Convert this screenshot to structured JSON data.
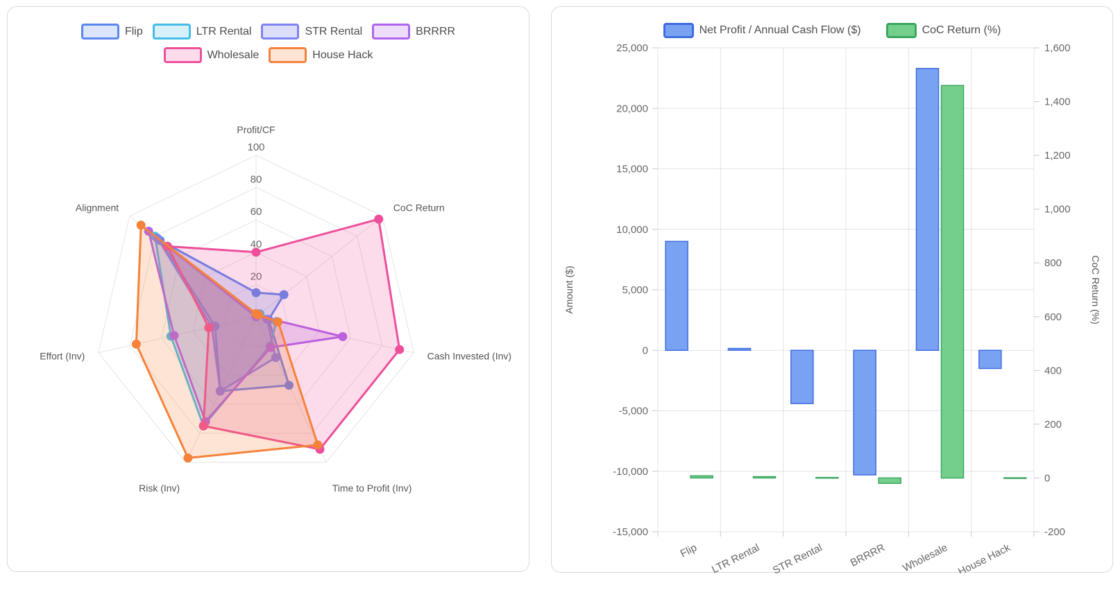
{
  "chart_data": [
    {
      "type": "radar",
      "title": "",
      "axes": [
        "Profit/CF",
        "CoC Return",
        "Cash Invested (Inv)",
        "Time to Profit (Inv)",
        "Risk (Inv)",
        "Effort (Inv)",
        "Alignment"
      ],
      "scale": {
        "min": 0,
        "max": 100,
        "tick_values": [
          20,
          40,
          60,
          80,
          100
        ],
        "tick_labels": [
          "20",
          "40",
          "60",
          "80",
          "100"
        ]
      },
      "grid": "on",
      "legend_position": "top",
      "series": [
        {
          "name": "Flip",
          "border": "#5b87ee",
          "fill": "rgba(91,135,238,0.22)",
          "values": [
            15,
            22,
            8,
            47,
            51,
            26,
            76
          ]
        },
        {
          "name": "LTR Rental",
          "border": "#45bde8",
          "fill": "rgba(69,189,232,0.22)",
          "values": [
            1,
            3,
            13,
            20,
            75,
            54,
            80
          ]
        },
        {
          "name": "STR Rental",
          "border": "#7e84f2",
          "fill": "rgba(126,132,242,0.28)",
          "values": [
            0,
            1,
            7,
            28,
            51,
            28,
            78
          ]
        },
        {
          "name": "BRRRR",
          "border": "#ae64ef",
          "fill": "rgba(174,100,239,0.22)",
          "values": [
            1,
            1,
            55,
            21,
            72,
            52,
            85
          ]
        },
        {
          "name": "Wholesale",
          "border": "#ee4f9b",
          "fill": "rgba(238,79,155,0.20)",
          "values": [
            40,
            97,
            91,
            91,
            75,
            30,
            70
          ]
        },
        {
          "name": "House Hack",
          "border": "#f5823a",
          "fill": "rgba(245,130,58,0.22)",
          "values": [
            2,
            2,
            14,
            88,
            97,
            76,
            91
          ]
        }
      ]
    },
    {
      "type": "bar",
      "title": "",
      "categories": [
        "Flip",
        "LTR Rental",
        "STR Rental",
        "BRRRR",
        "Wholesale",
        "House Hack"
      ],
      "grid": "on",
      "legend_position": "top",
      "left_axis": {
        "title": "Amount ($)",
        "min": -15000,
        "max": 25000,
        "step": 5000,
        "tick_values": [
          25000,
          20000,
          15000,
          10000,
          5000,
          0,
          -5000,
          -10000,
          -15000
        ],
        "tick_labels": [
          "25,000",
          "20,000",
          "15,000",
          "10,000",
          "5,000",
          "0",
          "-5,000",
          "-10,000",
          "-15,000"
        ]
      },
      "right_axis": {
        "title": "CoC Return (%)",
        "min": -200,
        "max": 1600,
        "step": 200,
        "tick_values": [
          1600,
          1400,
          1200,
          1000,
          800,
          600,
          400,
          200,
          0,
          -200
        ],
        "tick_labels": [
          "1,600",
          "1,400",
          "1,200",
          "1,000",
          "800",
          "600",
          "400",
          "200",
          "0",
          "-200"
        ]
      },
      "series": [
        {
          "name": "Net Profit / Annual Cash Flow ($)",
          "axis": "left",
          "border": "#3e6be0",
          "fill": "#7aa2f2",
          "values": [
            9000,
            150,
            -4400,
            -10300,
            23300,
            -1500
          ]
        },
        {
          "name": "CoC Return (%)",
          "axis": "right",
          "border": "#3aa75f",
          "fill": "#74cf8d",
          "values": [
            8,
            5,
            2,
            -20,
            1460,
            1
          ]
        }
      ]
    }
  ],
  "styles": {
    "grid_color": "#e4e4e4",
    "tick_dash_color": "#c9c9c9",
    "tick_text_color": "#666666",
    "axis_label_color": "#555555",
    "axis_title_color": "#555555"
  }
}
